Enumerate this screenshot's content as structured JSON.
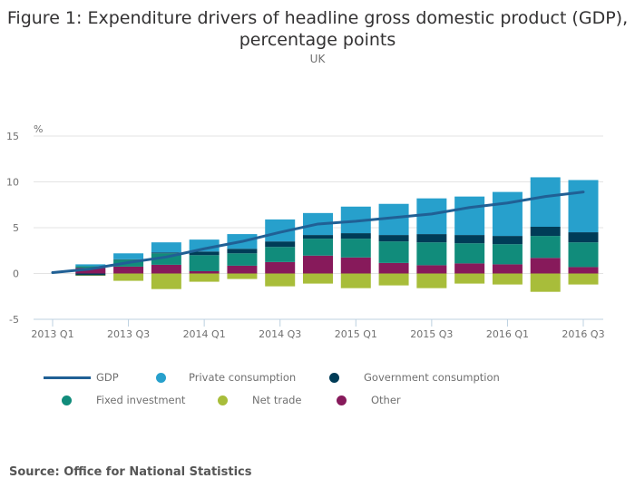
{
  "chart_data": {
    "type": "bar",
    "stacked": true,
    "title": "Figure 1: Expenditure drivers of headline gross domestic product (GDP), percentage points",
    "title_lines": [
      "Figure 1: Expenditure drivers of headline gross domestic product (GDP),",
      "percentage points"
    ],
    "subtitle": "UK",
    "ylabel": "%",
    "xlabel": "",
    "ylim": [
      -5,
      15
    ],
    "yticks": [
      15,
      10,
      5,
      0,
      -5
    ],
    "grid": true,
    "legend_position": "bottom",
    "categories": [
      "2013 Q1",
      "2013 Q2",
      "2013 Q3",
      "2013 Q4",
      "2014 Q1",
      "2014 Q2",
      "2014 Q3",
      "2014 Q4",
      "2015 Q1",
      "2015 Q2",
      "2015 Q3",
      "2015 Q4",
      "2016 Q1",
      "2016 Q2",
      "2016 Q3"
    ],
    "xtick_labels": [
      "2013 Q1",
      "2013 Q3",
      "2014 Q1",
      "2014 Q3",
      "2015 Q1",
      "2015 Q3",
      "2016 Q1",
      "2016 Q3"
    ],
    "series": [
      {
        "name": "Other",
        "color": "#871a5b",
        "kind": "bar",
        "values": [
          0,
          0.6,
          0.75,
          0.95,
          0.25,
          0.85,
          1.25,
          1.95,
          1.75,
          1.15,
          0.9,
          1.1,
          1.0,
          1.7,
          0.7
        ]
      },
      {
        "name": "Fixed investment",
        "color": "#118c7b",
        "kind": "bar",
        "values": [
          0,
          0.2,
          0.75,
          1.25,
          1.75,
          1.35,
          1.65,
          1.85,
          2.05,
          2.35,
          2.5,
          2.2,
          2.2,
          2.4,
          2.7
        ]
      },
      {
        "name": "Government consumption",
        "color": "#003c57",
        "kind": "bar",
        "values": [
          0,
          -0.2,
          0.05,
          0.1,
          0.4,
          0.5,
          0.6,
          0.4,
          0.6,
          0.7,
          0.9,
          0.9,
          0.9,
          1.0,
          1.1
        ]
      },
      {
        "name": "Private consumption",
        "color": "#27a0cc",
        "kind": "bar",
        "values": [
          0,
          0.2,
          0.65,
          1.1,
          1.3,
          1.6,
          2.4,
          2.4,
          2.9,
          3.4,
          3.9,
          4.2,
          4.8,
          5.4,
          5.7
        ]
      },
      {
        "name": "Net trade",
        "color": "#a8bd3a",
        "kind": "bar",
        "values": [
          0,
          -0.05,
          -0.8,
          -1.7,
          -0.9,
          -0.6,
          -1.4,
          -1.1,
          -1.6,
          -1.3,
          -1.6,
          -1.1,
          -1.2,
          -2.0,
          -1.2
        ]
      },
      {
        "name": "GDP",
        "color": "#206095",
        "kind": "line",
        "values": [
          0.1,
          0.5,
          1.2,
          1.8,
          2.7,
          3.5,
          4.5,
          5.4,
          5.7,
          6.1,
          6.5,
          7.2,
          7.7,
          8.4,
          8.9
        ]
      }
    ]
  },
  "legend": {
    "items": [
      {
        "label": "GDP",
        "color": "#206095",
        "shape": "line"
      },
      {
        "label": "Private consumption",
        "color": "#27a0cc",
        "shape": "dot"
      },
      {
        "label": "Government consumption",
        "color": "#003c57",
        "shape": "dot"
      },
      {
        "label": "Fixed investment",
        "color": "#118c7b",
        "shape": "dot"
      },
      {
        "label": "Net trade",
        "color": "#a8bd3a",
        "shape": "dot"
      },
      {
        "label": "Other",
        "color": "#871a5b",
        "shape": "dot"
      }
    ]
  },
  "source": "Source: Office for National Statistics"
}
